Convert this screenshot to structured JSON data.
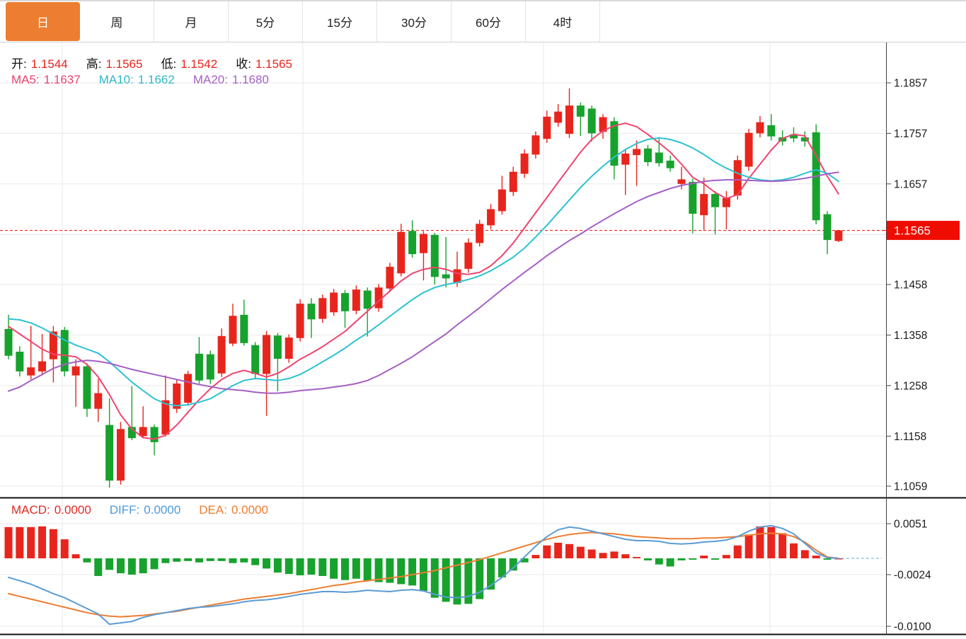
{
  "tabs": {
    "items": [
      {
        "name": "tab-day",
        "label": "日",
        "active": true
      },
      {
        "name": "tab-week",
        "label": "周",
        "active": false
      },
      {
        "name": "tab-month",
        "label": "月",
        "active": false
      },
      {
        "name": "tab-5min",
        "label": "5分",
        "active": false
      },
      {
        "name": "tab-15min",
        "label": "15分",
        "active": false
      },
      {
        "name": "tab-30min",
        "label": "30分",
        "active": false
      },
      {
        "name": "tab-60min",
        "label": "60分",
        "active": false
      },
      {
        "name": "tab-4hour",
        "label": "4时",
        "active": false
      }
    ],
    "active_color": "#ED7D31"
  },
  "legend": {
    "ohlc": [
      {
        "label": "开:",
        "value": "1.1544"
      },
      {
        "label": "高:",
        "value": "1.1565"
      },
      {
        "label": "低:",
        "value": "1.1542"
      },
      {
        "label": "收:",
        "value": "1.1565"
      }
    ],
    "ohlc_label_color": "#111111",
    "ohlc_value_color": "#E8251D",
    "ma": [
      {
        "label": "MA5:",
        "value": "1.1637",
        "color": "#E8436F"
      },
      {
        "label": "MA10:",
        "value": "1.1662",
        "color": "#2FB8C6"
      },
      {
        "label": "MA20:",
        "value": "1.1680",
        "color": "#A45FC4"
      }
    ],
    "macd": [
      {
        "label": "MACD:",
        "value": "0.0000",
        "color": "#E02A22"
      },
      {
        "label": "DIFF:",
        "value": "0.0000",
        "color": "#4D9AD8"
      },
      {
        "label": "DEA:",
        "value": "0.0000",
        "color": "#ED7D31"
      }
    ]
  },
  "axis": {
    "price_labels": [
      "1.1857",
      "1.1757",
      "1.1657",
      "1.1458",
      "1.1358",
      "1.1258",
      "1.1158",
      "1.1059"
    ],
    "price_label_values": [
      1.1857,
      1.1757,
      1.1657,
      1.1458,
      1.1358,
      1.1258,
      1.1158,
      1.1059
    ],
    "gridline_prices": [
      1.1857,
      1.1757,
      1.1657,
      1.1557,
      1.1458,
      1.1358,
      1.1258,
      1.1158,
      1.1059
    ],
    "current_price_label": "1.1565",
    "current_price": 1.1565,
    "macd_labels": [
      "0.0051",
      "-0.0024",
      "-0.0100"
    ],
    "macd_label_values": [
      0.0051,
      -0.0024,
      -0.01
    ]
  },
  "colors": {
    "up": "#E8251D",
    "down": "#17A22D",
    "ma5": "#F0436E",
    "ma10": "#2BC2D2",
    "ma20": "#A45FC4",
    "diff": "#5B9BD5",
    "dea": "#ED7D31",
    "grid": "#EAEAEA",
    "grid_accent": "#D9E4F0",
    "axis_line": "#444444",
    "axis_text": "#1a1a1a",
    "current_line": "#F82318",
    "current_tag_bg": "#EE0D00",
    "current_tag_text": "#FFFFFF",
    "separator": "#111111",
    "zero_dash": "#9DC3E6"
  },
  "chart_data": {
    "type": "candlestick",
    "title": "",
    "panels": [
      "price",
      "MACD"
    ],
    "price_axis_range": [
      1.1059,
      1.1857
    ],
    "macd_axis_range": [
      -0.01,
      0.0051
    ],
    "candles_ochl": [
      [
        1.137,
        1.1317,
        1.1398,
        1.131
      ],
      [
        1.1325,
        1.1286,
        1.1336,
        1.1276
      ],
      [
        1.1278,
        1.1294,
        1.1376,
        1.127
      ],
      [
        1.1286,
        1.1306,
        1.136,
        1.1278
      ],
      [
        1.131,
        1.1365,
        1.1376,
        1.1264
      ],
      [
        1.1368,
        1.1286,
        1.1374,
        1.1276
      ],
      [
        1.1278,
        1.1296,
        1.131,
        1.1216
      ],
      [
        1.1296,
        1.1212,
        1.1302,
        1.1196
      ],
      [
        1.1212,
        1.1243,
        1.1271,
        1.1186
      ],
      [
        1.118,
        1.107,
        1.1233,
        1.1056
      ],
      [
        1.107,
        1.1172,
        1.1186,
        1.1062
      ],
      [
        1.1176,
        1.1154,
        1.1257,
        1.115
      ],
      [
        1.1158,
        1.1176,
        1.1217,
        1.1154
      ],
      [
        1.1176,
        1.1146,
        1.1181,
        1.112
      ],
      [
        1.1161,
        1.1229,
        1.1278,
        1.1157
      ],
      [
        1.1212,
        1.1262,
        1.127,
        1.1204
      ],
      [
        1.1224,
        1.1281,
        1.1287,
        1.1218
      ],
      [
        1.1321,
        1.1268,
        1.1354,
        1.1262
      ],
      [
        1.132,
        1.127,
        1.1327,
        1.1261
      ],
      [
        1.1282,
        1.1356,
        1.1371,
        1.1275
      ],
      [
        1.1341,
        1.1396,
        1.142,
        1.1336
      ],
      [
        1.1398,
        1.1342,
        1.1428,
        1.1337
      ],
      [
        1.1338,
        1.1281,
        1.1344,
        1.127
      ],
      [
        1.1281,
        1.1358,
        1.1366,
        1.1198
      ],
      [
        1.1357,
        1.1311,
        1.1362,
        1.1247
      ],
      [
        1.1311,
        1.1353,
        1.1359,
        1.1303
      ],
      [
        1.1352,
        1.142,
        1.1429,
        1.1345
      ],
      [
        1.142,
        1.1389,
        1.1431,
        1.1352
      ],
      [
        1.139,
        1.1431,
        1.1438,
        1.1382
      ],
      [
        1.1403,
        1.1442,
        1.1449,
        1.1396
      ],
      [
        1.1441,
        1.1405,
        1.1447,
        1.1372
      ],
      [
        1.1406,
        1.1448,
        1.1456,
        1.1399
      ],
      [
        1.1446,
        1.141,
        1.1452,
        1.1355
      ],
      [
        1.1411,
        1.1452,
        1.1459,
        1.1404
      ],
      [
        1.145,
        1.1493,
        1.1501,
        1.1443
      ],
      [
        1.148,
        1.1562,
        1.1578,
        1.1474
      ],
      [
        1.1564,
        1.1518,
        1.1585,
        1.1511
      ],
      [
        1.152,
        1.1558,
        1.1564,
        1.1466
      ],
      [
        1.1556,
        1.1473,
        1.156,
        1.1458
      ],
      [
        1.1478,
        1.147,
        1.1552,
        1.1452
      ],
      [
        1.1461,
        1.1488,
        1.1523,
        1.1453
      ],
      [
        1.1489,
        1.1541,
        1.1549,
        1.1481
      ],
      [
        1.154,
        1.1578,
        1.1586,
        1.1533
      ],
      [
        1.1575,
        1.1607,
        1.1617,
        1.1567
      ],
      [
        1.1603,
        1.1646,
        1.1673,
        1.1596
      ],
      [
        1.1641,
        1.1681,
        1.1691,
        1.1633
      ],
      [
        1.1677,
        1.1717,
        1.1725,
        1.1669
      ],
      [
        1.1715,
        1.1753,
        1.1761,
        1.1707
      ],
      [
        1.1746,
        1.179,
        1.1802,
        1.1738
      ],
      [
        1.1778,
        1.18,
        1.1815,
        1.177
      ],
      [
        1.1756,
        1.1812,
        1.1846,
        1.1748
      ],
      [
        1.1812,
        1.179,
        1.1818,
        1.1752
      ],
      [
        1.1806,
        1.1757,
        1.1812,
        1.1741
      ],
      [
        1.176,
        1.1789,
        1.1795,
        1.1746
      ],
      [
        1.1781,
        1.1693,
        1.1789,
        1.1666
      ],
      [
        1.1695,
        1.1717,
        1.1725,
        1.1635
      ],
      [
        1.1714,
        1.1726,
        1.1743,
        1.1653
      ],
      [
        1.1727,
        1.17,
        1.1734,
        1.1692
      ],
      [
        1.1719,
        1.1698,
        1.1746,
        1.1691
      ],
      [
        1.1703,
        1.1688,
        1.1713,
        1.1681
      ],
      [
        1.1657,
        1.1666,
        1.1691,
        1.1646
      ],
      [
        1.1661,
        1.1598,
        1.1667,
        1.1559
      ],
      [
        1.1595,
        1.1637,
        1.1669,
        1.1566
      ],
      [
        1.1637,
        1.1611,
        1.1643,
        1.1557
      ],
      [
        1.1611,
        1.1629,
        1.1643,
        1.1567
      ],
      [
        1.1634,
        1.1704,
        1.1713,
        1.1626
      ],
      [
        1.1691,
        1.1758,
        1.1766,
        1.1683
      ],
      [
        1.1757,
        1.1779,
        1.1791,
        1.1749
      ],
      [
        1.1773,
        1.1751,
        1.1795,
        1.1743
      ],
      [
        1.1749,
        1.1741,
        1.1763,
        1.1733
      ],
      [
        1.1755,
        1.1747,
        1.1769,
        1.1739
      ],
      [
        1.1749,
        1.1741,
        1.1761,
        1.1731
      ],
      [
        1.1759,
        1.1585,
        1.1775,
        1.1577
      ],
      [
        1.1597,
        1.1546,
        1.1603,
        1.1518
      ],
      [
        1.1544,
        1.1565,
        1.1565,
        1.1542
      ]
    ],
    "ma5": [
      1.1375,
      1.136,
      1.1345,
      1.133,
      1.132,
      1.1318,
      1.1315,
      1.13,
      1.1275,
      1.124,
      1.12,
      1.1172,
      1.1155,
      1.1152,
      1.116,
      1.118,
      1.1205,
      1.123,
      1.1252,
      1.127,
      1.1282,
      1.1288,
      1.1282,
      1.1275,
      1.1282,
      1.1295,
      1.131,
      1.1322,
      1.1335,
      1.135,
      1.1365,
      1.1385,
      1.1405,
      1.1425,
      1.1445,
      1.1465,
      1.148,
      1.1488,
      1.1492,
      1.1488,
      1.148,
      1.1478,
      1.1482,
      1.1495,
      1.1515,
      1.154,
      1.157,
      1.16,
      1.163,
      1.166,
      1.169,
      1.172,
      1.1745,
      1.1762,
      1.1772,
      1.1777,
      1.177,
      1.1755,
      1.1738,
      1.172,
      1.1696,
      1.167,
      1.1657,
      1.164,
      1.1628,
      1.1636,
      1.1668,
      1.1696,
      1.1724,
      1.1747,
      1.1755,
      1.1752,
      1.1713,
      1.1672,
      1.1637
    ],
    "ma10": [
      1.139,
      1.1388,
      1.1382,
      1.1372,
      1.136,
      1.1348,
      1.1338,
      1.133,
      1.1322,
      1.1305,
      1.1285,
      1.1265,
      1.1248,
      1.1232,
      1.1222,
      1.1218,
      1.122,
      1.1225,
      1.1232,
      1.1245,
      1.1258,
      1.1268,
      1.1272,
      1.127,
      1.1268,
      1.1272,
      1.128,
      1.1292,
      1.1305,
      1.1318,
      1.1332,
      1.1348,
      1.1362,
      1.1378,
      1.1395,
      1.1412,
      1.1428,
      1.1442,
      1.1452,
      1.1458,
      1.1462,
      1.1468,
      1.1475,
      1.1485,
      1.1498,
      1.1512,
      1.153,
      1.1552,
      1.1575,
      1.16,
      1.1625,
      1.165,
      1.1672,
      1.1692,
      1.171,
      1.1725,
      1.1737,
      1.1745,
      1.1748,
      1.1745,
      1.1738,
      1.1728,
      1.1715,
      1.17,
      1.1688,
      1.1678,
      1.167,
      1.1665,
      1.1663,
      1.1665,
      1.167,
      1.1678,
      1.1685,
      1.1678,
      1.1662
    ],
    "ma20": [
      1.1247,
      1.1255,
      1.1268,
      1.128,
      1.1292,
      1.13,
      1.1305,
      1.1308,
      1.1306,
      1.1302,
      1.1296,
      1.129,
      1.1285,
      1.128,
      1.1275,
      1.127,
      1.1265,
      1.126,
      1.1256,
      1.1252,
      1.125,
      1.1248,
      1.1245,
      1.1243,
      1.1243,
      1.1245,
      1.1248,
      1.125,
      1.1252,
      1.1255,
      1.1258,
      1.1262,
      1.1268,
      1.1278,
      1.129,
      1.1302,
      1.1315,
      1.133,
      1.1345,
      1.136,
      1.1378,
      1.1395,
      1.1412,
      1.143,
      1.1448,
      1.1465,
      1.1482,
      1.1498,
      1.1515,
      1.153,
      1.1545,
      1.1558,
      1.1572,
      1.1585,
      1.1598,
      1.161,
      1.1622,
      1.1632,
      1.164,
      1.1648,
      1.1654,
      1.1658,
      1.1662,
      1.1664,
      1.1665,
      1.1665,
      1.1664,
      1.1663,
      1.1662,
      1.1663,
      1.1665,
      1.1668,
      1.1672,
      1.1677,
      1.168
    ],
    "macd_hist": [
      0.0046,
      0.0046,
      0.0046,
      0.0047,
      0.0043,
      0.0028,
      0.0006,
      -0.0006,
      -0.0026,
      -0.0017,
      -0.0022,
      -0.0024,
      -0.0022,
      -0.0016,
      -0.0007,
      -0.0005,
      -0.0004,
      -0.0006,
      -0.0004,
      -0.0004,
      -0.0007,
      -0.0006,
      -0.001,
      -0.0015,
      -0.0021,
      -0.0023,
      -0.0025,
      -0.0024,
      -0.0026,
      -0.003,
      -0.0032,
      -0.003,
      -0.0033,
      -0.0035,
      -0.0036,
      -0.0038,
      -0.004,
      -0.0048,
      -0.0058,
      -0.0064,
      -0.0068,
      -0.0067,
      -0.006,
      -0.0046,
      -0.0028,
      -0.0018,
      -0.0006,
      0.0005,
      0.0019,
      0.0023,
      0.0021,
      0.0017,
      0.0013,
      0.0008,
      0.001,
      0.0006,
      0.0002,
      -0.0003,
      -0.0009,
      -0.0012,
      -0.0003,
      -0.0002,
      0.0004,
      -0.0002,
      0.0005,
      0.0019,
      0.0035,
      0.0047,
      0.0046,
      0.0037,
      0.0022,
      0.0012,
      0.0004,
      -0.0002,
      0.0
    ],
    "diff": [
      -0.0028,
      -0.0033,
      -0.0038,
      -0.0045,
      -0.0052,
      -0.0058,
      -0.0066,
      -0.0074,
      -0.0082,
      -0.0097,
      -0.0095,
      -0.0093,
      -0.0087,
      -0.0083,
      -0.008,
      -0.0077,
      -0.0074,
      -0.0072,
      -0.0071,
      -0.0069,
      -0.0067,
      -0.0064,
      -0.0062,
      -0.0061,
      -0.0059,
      -0.0056,
      -0.0053,
      -0.0051,
      -0.0049,
      -0.0049,
      -0.005,
      -0.0049,
      -0.0047,
      -0.0048,
      -0.0049,
      -0.0047,
      -0.0046,
      -0.0048,
      -0.0053,
      -0.0057,
      -0.0058,
      -0.0056,
      -0.005,
      -0.004,
      -0.0028,
      -0.0014,
      0.0002,
      0.0018,
      0.0032,
      0.0042,
      0.0046,
      0.0044,
      0.004,
      0.0036,
      0.0032,
      0.0028,
      0.0026,
      0.0026,
      0.0025,
      0.0022,
      0.0021,
      0.0022,
      0.0024,
      0.0025,
      0.0027,
      0.0032,
      0.004,
      0.0046,
      0.0048,
      0.0044,
      0.0036,
      0.0022,
      0.0008,
      0.0001,
      0.0
    ],
    "dea": [
      -0.0052,
      -0.0056,
      -0.006,
      -0.0064,
      -0.0068,
      -0.0072,
      -0.0076,
      -0.008,
      -0.0083,
      -0.0085,
      -0.0086,
      -0.0085,
      -0.0084,
      -0.0082,
      -0.008,
      -0.0078,
      -0.0075,
      -0.0072,
      -0.0069,
      -0.0066,
      -0.0063,
      -0.006,
      -0.0058,
      -0.0056,
      -0.0054,
      -0.0052,
      -0.0049,
      -0.0046,
      -0.0043,
      -0.004,
      -0.0038,
      -0.0035,
      -0.0033,
      -0.0031,
      -0.0029,
      -0.0027,
      -0.0024,
      -0.0021,
      -0.0018,
      -0.0014,
      -0.001,
      -0.0006,
      -0.0002,
      0.0003,
      0.0008,
      0.0013,
      0.0018,
      0.0023,
      0.0028,
      0.0032,
      0.0035,
      0.0037,
      0.0038,
      0.0037,
      0.0036,
      0.0034,
      0.0032,
      0.0031,
      0.003,
      0.0029,
      0.0029,
      0.0029,
      0.003,
      0.003,
      0.0031,
      0.0032,
      0.0034,
      0.0036,
      0.0037,
      0.0036,
      0.0032,
      0.0024,
      0.0012,
      0.0002,
      0.0
    ]
  }
}
